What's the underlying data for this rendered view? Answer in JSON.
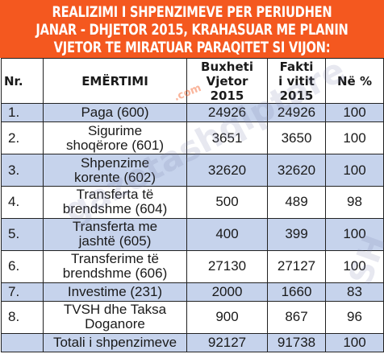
{
  "title": {
    "line1": "REALIZIMI I SHPENZIMEVE PER PERIUDHEN",
    "line2": "JANAR - DHJETOR 2015, KRAHASUAR ME PLANIN",
    "line3": "VJETOR TE MIRATUAR PARAQITET SI VIJON:"
  },
  "watermark": {
    "main": "gazetashqiptare",
    "domain": ".com",
    "side": "SH"
  },
  "table": {
    "headers": {
      "nr": "Nr.",
      "name": "EMËRTIMI",
      "budget_line1": "Buxheti",
      "budget_line2": "Vjetor 2015",
      "fact_line1": "Fakti",
      "fact_line2": "i vitit",
      "fact_line3": "2015",
      "percent": "Në %"
    },
    "rows": [
      {
        "nr": "1.",
        "name_line1": "Paga (600)",
        "name_line2": "",
        "budget": "24926",
        "fact": "24926",
        "percent": "100"
      },
      {
        "nr": "2.",
        "name_line1": "Sigurime",
        "name_line2": "shoqërore (601)",
        "budget": "3651",
        "fact": "3650",
        "percent": "100"
      },
      {
        "nr": "3.",
        "name_line1": "Shpenzime",
        "name_line2": "korente (602)",
        "budget": "32620",
        "fact": "32620",
        "percent": "100"
      },
      {
        "nr": "4.",
        "name_line1": "Transferta të",
        "name_line2": "brendshme (604)",
        "budget": "500",
        "fact": "489",
        "percent": "98"
      },
      {
        "nr": "5.",
        "name_line1": "Transferta me",
        "name_line2": "jashtë (605)",
        "budget": "400",
        "fact": "399",
        "percent": "100"
      },
      {
        "nr": "6.",
        "name_line1": "Transferime të",
        "name_line2": "brendshme (606)",
        "budget": "27130",
        "fact": "27127",
        "percent": "100"
      },
      {
        "nr": "7.",
        "name_line1": "Investime (231)",
        "name_line2": "",
        "budget": "2000",
        "fact": "1660",
        "percent": "83"
      },
      {
        "nr": "8.",
        "name_line1": "TVSH dhe Taksa",
        "name_line2": "Doganore",
        "budget": "900",
        "fact": "867",
        "percent": "96"
      }
    ],
    "total": {
      "label": "Totali i shpenzimeve",
      "budget": "92127",
      "fact": "91738",
      "percent": "100"
    }
  }
}
